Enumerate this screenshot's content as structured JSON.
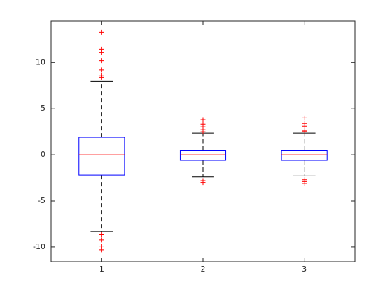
{
  "chart_data": {
    "type": "box",
    "categories": [
      "1",
      "2",
      "3"
    ],
    "boxes": [
      {
        "q1": -2.2,
        "median": 0,
        "q3": 1.9,
        "whisker_low": -8.33,
        "whisker_high": 7.95,
        "outliers": [
          13.26,
          11.44,
          11.06,
          10.2,
          9.2,
          8.56,
          8.4,
          -8.6,
          -9.24,
          -9.9,
          -10.3
        ]
      },
      {
        "q1": -0.6,
        "median": 0,
        "q3": 0.5,
        "whisker_low": -2.4,
        "whisker_high": 2.35,
        "outliers": [
          3.8,
          3.33,
          3.03,
          2.73,
          2.5,
          -2.8,
          -3.0
        ]
      },
      {
        "q1": -0.6,
        "median": 0,
        "q3": 0.5,
        "whisker_low": -2.3,
        "whisker_high": 2.35,
        "outliers": [
          4.0,
          3.4,
          3.1,
          2.6,
          2.5,
          -2.7,
          -2.9,
          -3.1
        ]
      }
    ],
    "box_color": "#0000ff",
    "median_color": "#ff0000",
    "whisker_color": "#000000",
    "outlier_color": "#ff0000",
    "ylim": [
      -11.6,
      14.5
    ],
    "yticks": [
      -10,
      -5,
      0,
      5,
      10
    ]
  }
}
